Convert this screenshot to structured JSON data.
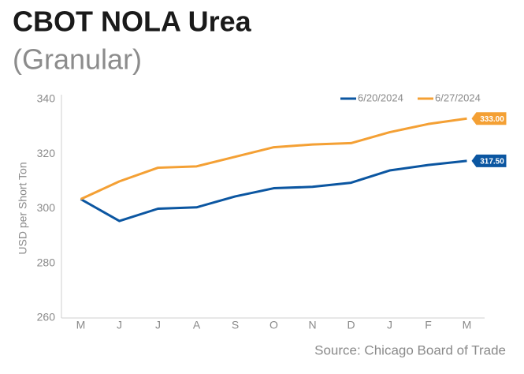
{
  "chart_data": {
    "type": "line",
    "title": "CBOT NOLA Urea",
    "subtitle": "(Granular)",
    "y_label": "USD per Short Ton",
    "source": "Source: Chicago Board of Trade",
    "categories": [
      "M",
      "J",
      "J",
      "A",
      "S",
      "O",
      "N",
      "D",
      "J",
      "F",
      "M"
    ],
    "series": [
      {
        "name": "6/20/2024",
        "color": "#0b56a1",
        "values": [
          303.5,
          295.5,
          300,
          300.5,
          304.5,
          307.5,
          308,
          309.5,
          314,
          316,
          317.5
        ],
        "value_labels": [
          null,
          null,
          null,
          null,
          null,
          null,
          null,
          null,
          null,
          null,
          "317.50"
        ]
      },
      {
        "name": "6/27/2024",
        "color": "#f4a034",
        "values": [
          303.5,
          310,
          315,
          315.5,
          319,
          322.5,
          323.5,
          324,
          328,
          331,
          333
        ],
        "value_labels": [
          null,
          null,
          null,
          null,
          null,
          null,
          null,
          null,
          null,
          null,
          "333.00"
        ]
      }
    ],
    "ylim": [
      260,
      340
    ],
    "yticks": [
      260,
      280,
      300,
      320,
      340
    ],
    "grid": false,
    "legend": "top-right"
  }
}
